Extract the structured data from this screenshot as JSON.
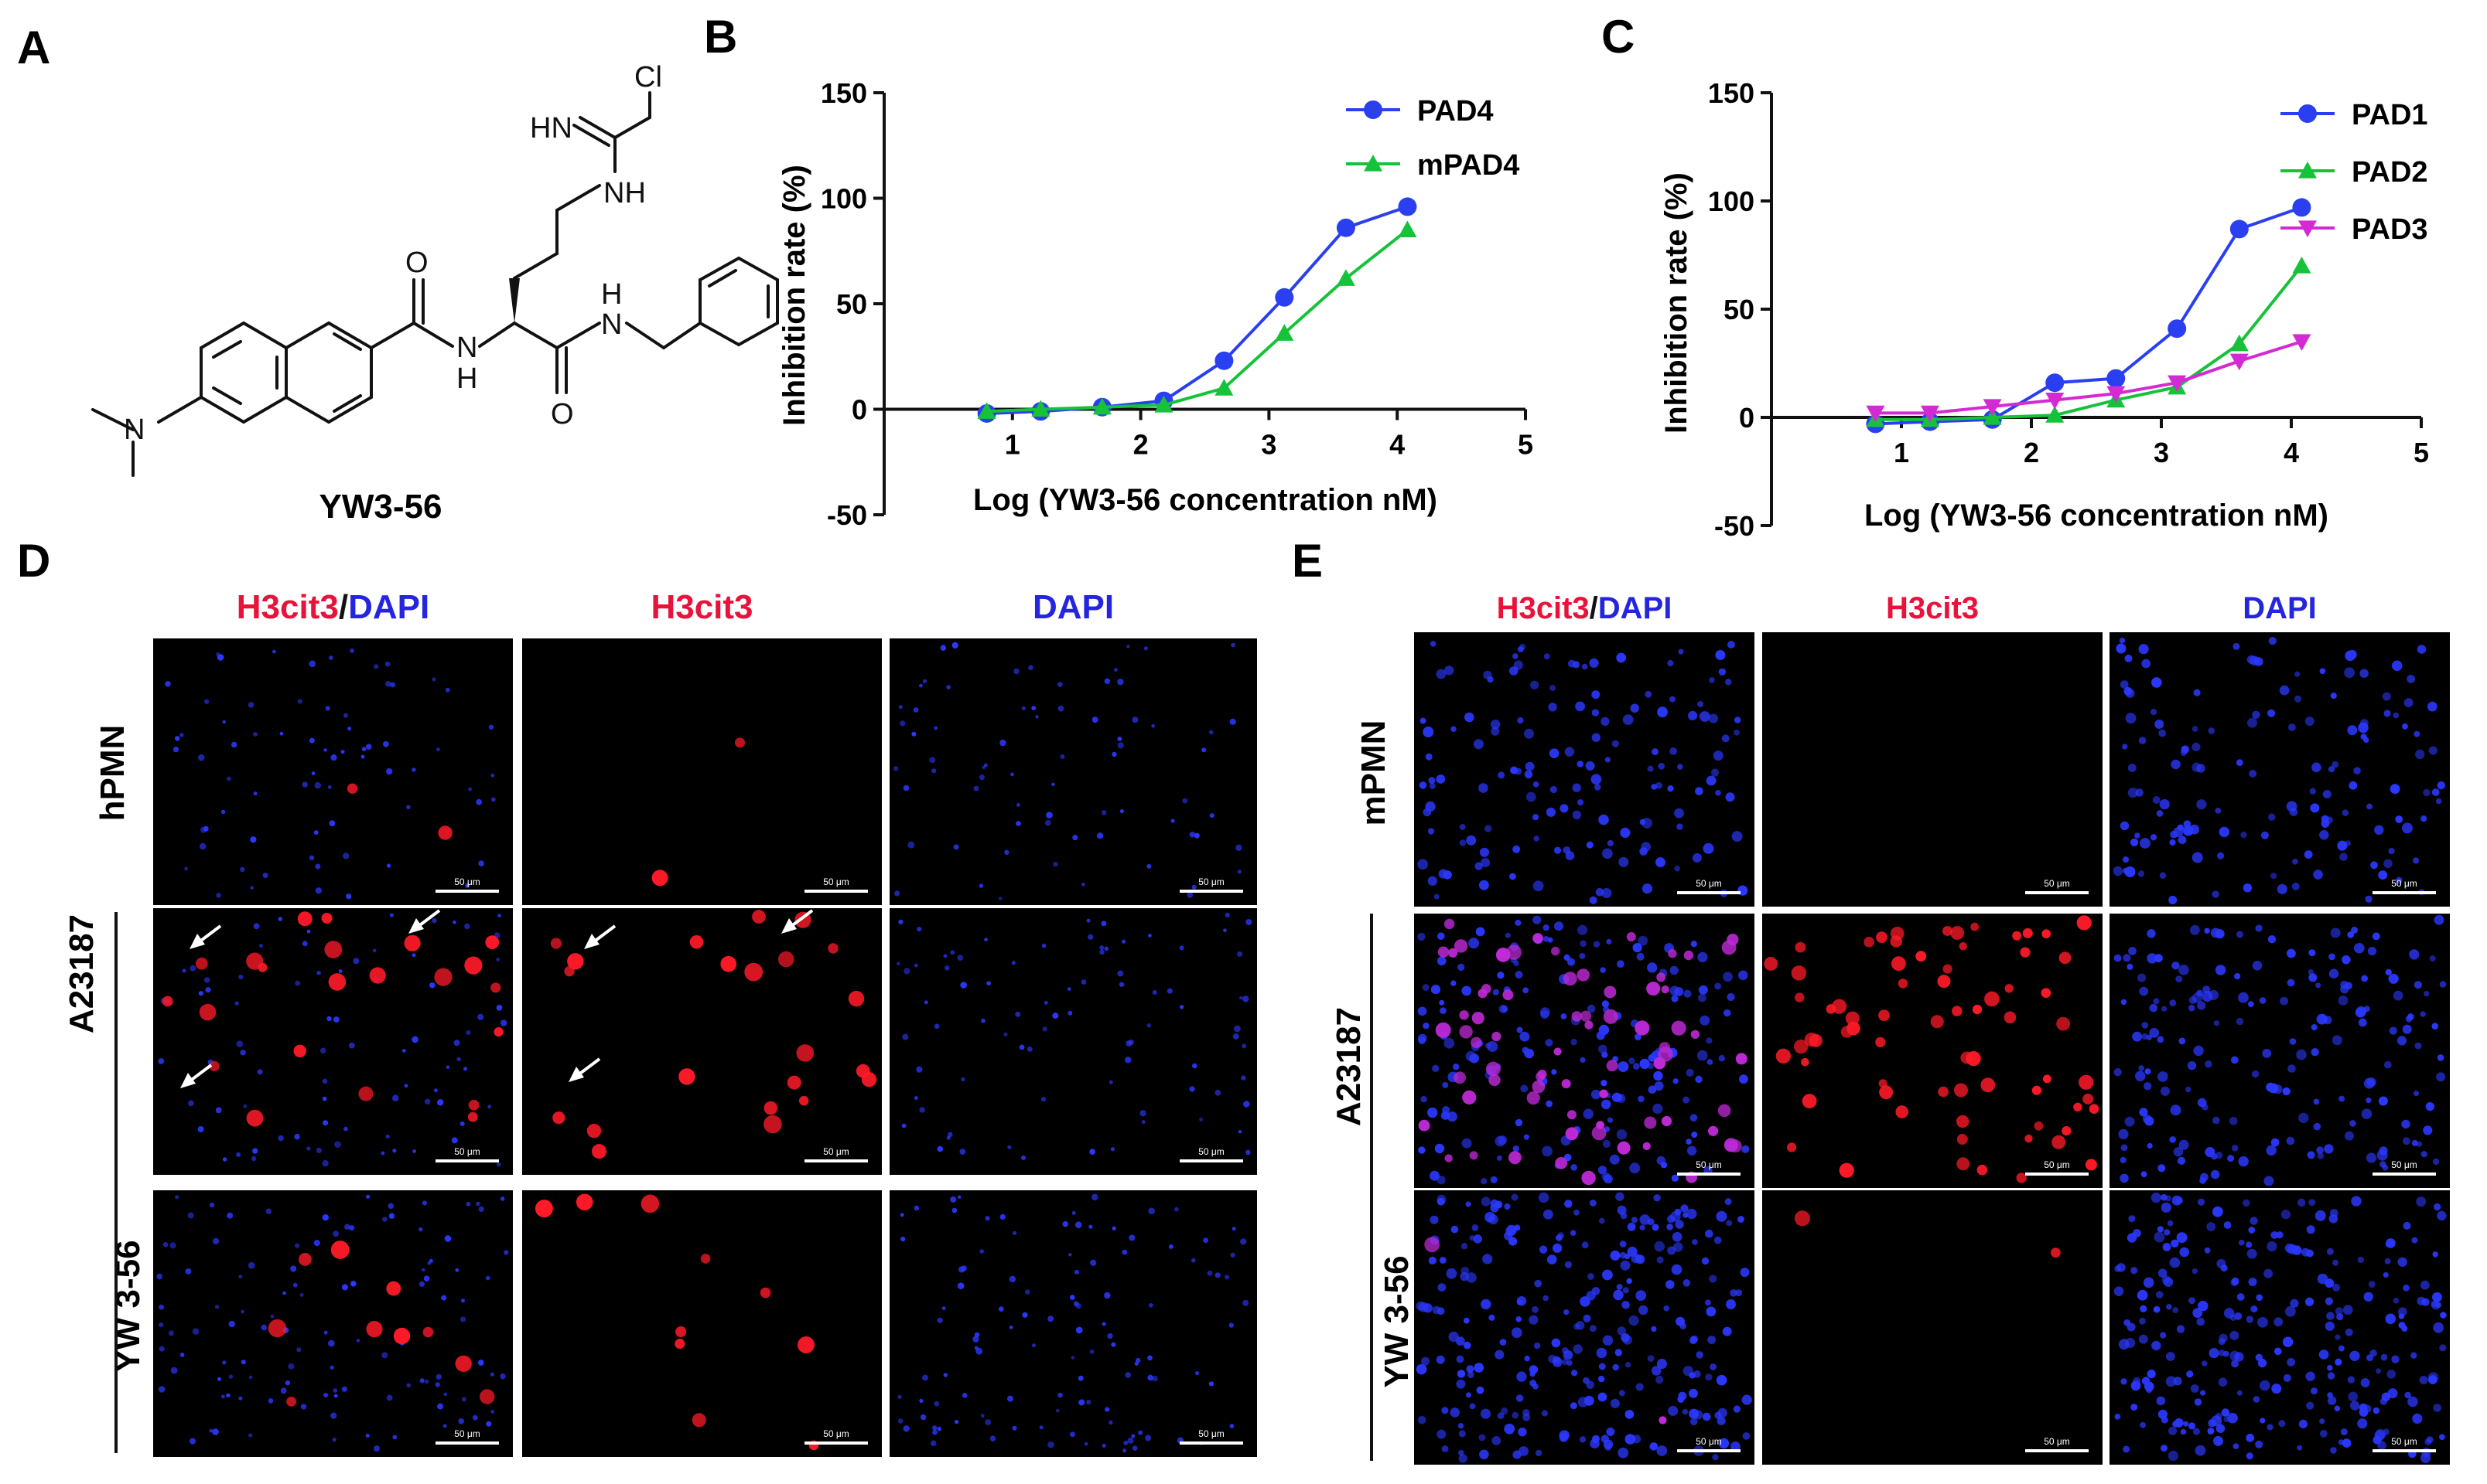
{
  "panels": {
    "A": "A",
    "B": "B",
    "C": "C",
    "D": "D",
    "E": "E"
  },
  "molecule": {
    "name": "YW3-56",
    "atoms": {
      "cl": "Cl",
      "hn_imine": "HN",
      "nh_amidine": "NH",
      "o_top": "O",
      "n_amide1": "N",
      "h_amide1": "H",
      "n_amide2": "N",
      "h_amide2": "H",
      "o_bottom": "O",
      "n_dimethyl": "N"
    }
  },
  "chart_data": [
    {
      "type": "line",
      "panel": "B",
      "title": "",
      "xlabel": "Log (YW3-56 concentration nM)",
      "ylabel": "Inhibition rate  (%)",
      "xlim": [
        0,
        5
      ],
      "ylim": [
        -50,
        150
      ],
      "xticks": [
        "1",
        "2",
        "3",
        "4",
        "5"
      ],
      "yticks": [
        "-50",
        "0",
        "50",
        "100",
        "150"
      ],
      "legend_position": "top-right",
      "series": [
        {
          "name": "PAD4",
          "color": "#2a3ff0",
          "marker": "circle",
          "x": [
            0.8,
            1.22,
            1.7,
            2.18,
            2.65,
            3.12,
            3.6,
            4.08
          ],
          "y": [
            -2,
            -1,
            1,
            4,
            23,
            53,
            86,
            96
          ]
        },
        {
          "name": "mPAD4",
          "color": "#16c23a",
          "marker": "triangle-up",
          "x": [
            0.8,
            1.22,
            1.7,
            2.18,
            2.65,
            3.12,
            3.6,
            4.08
          ],
          "y": [
            -1,
            0,
            1,
            2,
            10,
            36,
            62,
            85
          ]
        }
      ]
    },
    {
      "type": "line",
      "panel": "C",
      "title": "",
      "xlabel": "Log (YW3-56 concentration nM)",
      "ylabel": "Inhibition rate (%)",
      "xlim": [
        0,
        5
      ],
      "ylim": [
        -50,
        150
      ],
      "xticks": [
        "1",
        "2",
        "3",
        "4",
        "5"
      ],
      "yticks": [
        "-50",
        "0",
        "50",
        "100",
        "150"
      ],
      "legend_position": "top-right",
      "series": [
        {
          "name": "PAD1",
          "color": "#2a3ff0",
          "marker": "circle",
          "x": [
            0.8,
            1.22,
            1.7,
            2.18,
            2.65,
            3.12,
            3.6,
            4.08
          ],
          "y": [
            -3,
            -2,
            -1,
            16,
            18,
            41,
            87,
            97
          ]
        },
        {
          "name": "PAD2",
          "color": "#16c23a",
          "marker": "triangle-up",
          "x": [
            0.8,
            1.22,
            1.7,
            2.18,
            2.65,
            3.12,
            3.6,
            4.08
          ],
          "y": [
            -1,
            -1,
            0,
            1,
            8,
            14,
            34,
            70
          ]
        },
        {
          "name": "PAD3",
          "color": "#d42ad4",
          "marker": "triangle-down",
          "x": [
            0.8,
            1.22,
            1.7,
            2.18,
            2.65,
            3.12,
            3.6,
            4.08
          ],
          "y": [
            2,
            2,
            5,
            8,
            11,
            16,
            26,
            35
          ]
        }
      ]
    }
  ],
  "micro": {
    "D": {
      "headers": [
        [
          {
            "text": "H3cit3",
            "color": "#e8133a"
          },
          {
            "text": "/",
            "color": "#111111"
          },
          {
            "text": "DAPI",
            "color": "#2525e0"
          }
        ],
        [
          {
            "text": "H3cit3",
            "color": "#e8133a"
          }
        ],
        [
          {
            "text": "DAPI",
            "color": "#2525e0"
          }
        ]
      ],
      "rows": [
        "hPMN",
        "A23187",
        "YW 3-56"
      ],
      "scale": "50 μm"
    },
    "E": {
      "headers": [
        [
          {
            "text": "H3cit3",
            "color": "#e8133a"
          },
          {
            "text": "/",
            "color": "#111111"
          },
          {
            "text": "DAPI",
            "color": "#2525e0"
          }
        ],
        [
          {
            "text": "H3cit3",
            "color": "#e8133a"
          }
        ],
        [
          {
            "text": "DAPI",
            "color": "#2525e0"
          }
        ]
      ],
      "rows": [
        "mPMN",
        "A23187",
        "YW 3-56"
      ],
      "scale": "50 μm"
    }
  }
}
